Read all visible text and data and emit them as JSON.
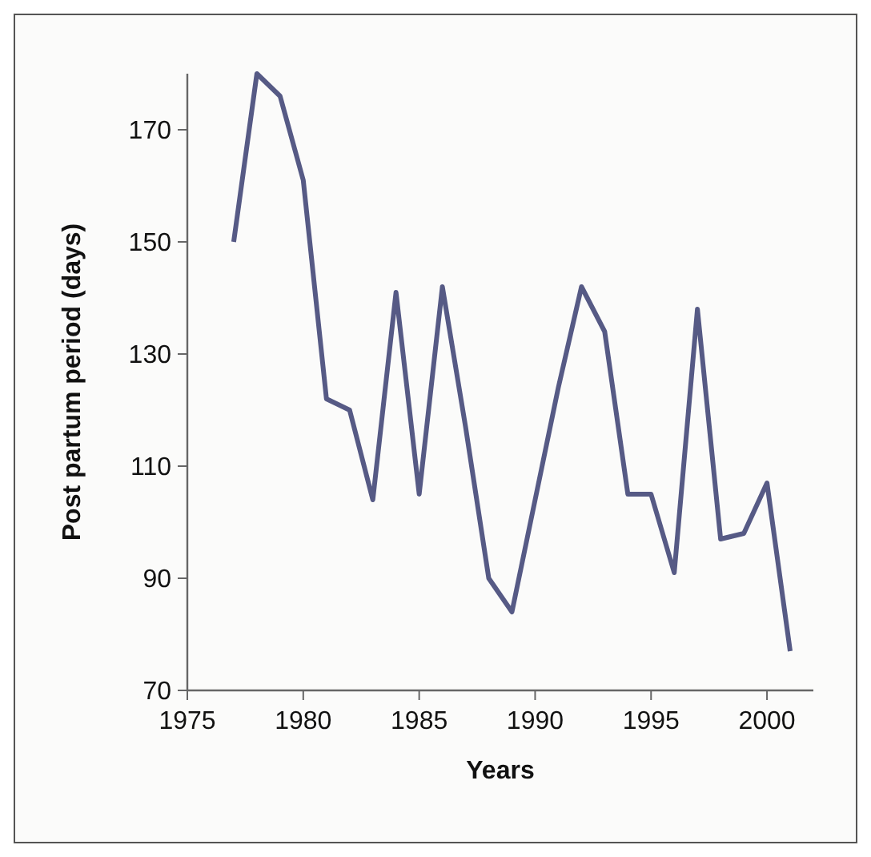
{
  "chart_data": {
    "type": "line",
    "xlabel": "Years",
    "ylabel": "Post partum period (days)",
    "x": [
      1977,
      1978,
      1979,
      1980,
      1981,
      1982,
      1983,
      1984,
      1985,
      1986,
      1987,
      1988,
      1989,
      1990,
      1991,
      1992,
      1993,
      1994,
      1995,
      1996,
      1997,
      1998,
      1999,
      2000,
      2001
    ],
    "series": [
      {
        "color": "#565a85",
        "values": [
          150,
          180,
          176,
          161,
          122,
          120,
          104,
          141,
          105,
          142,
          117,
          90,
          84,
          104,
          124,
          142,
          134,
          105,
          105,
          91,
          138,
          97,
          98,
          107,
          77
        ]
      }
    ],
    "xlim": [
      1975,
      2002
    ],
    "xticks": [
      1975,
      1980,
      1985,
      1990,
      1995,
      2000
    ],
    "ylim": [
      70,
      180
    ],
    "yticks": [
      70,
      90,
      110,
      130,
      150,
      170
    ],
    "grid": false,
    "marker": "none",
    "line_style": "solid"
  }
}
